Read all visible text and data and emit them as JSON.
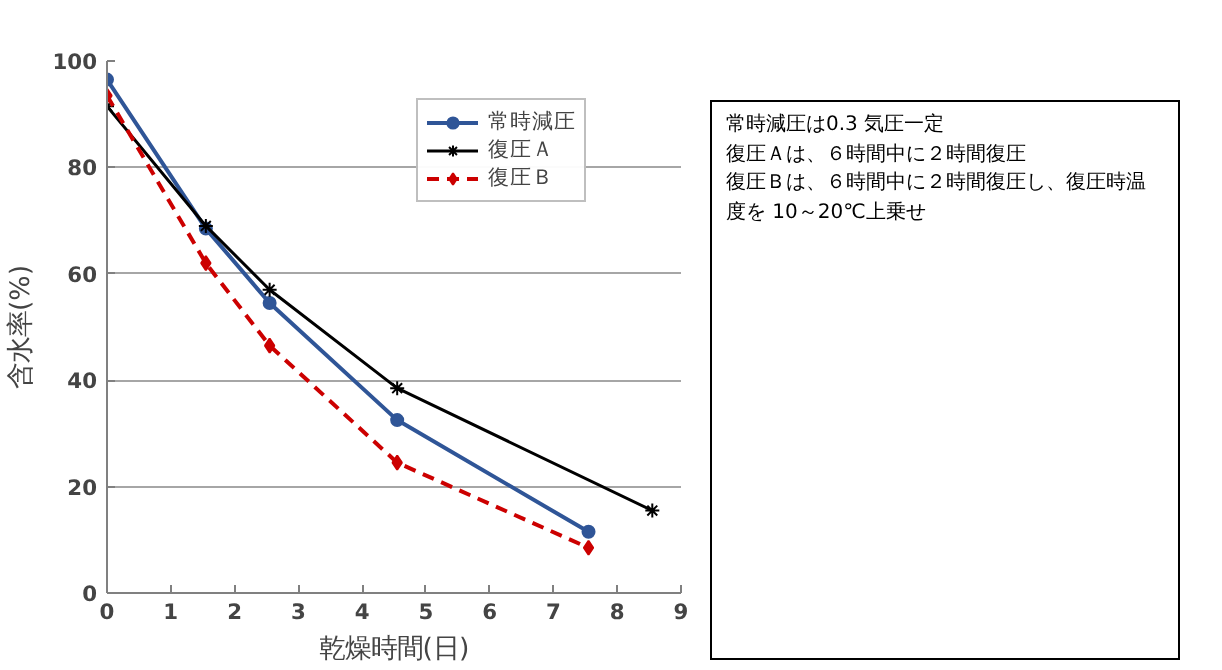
{
  "chart_data": {
    "type": "line",
    "xlabel": "乾燥時間(日)",
    "ylabel": "含水率(%)",
    "xlim": [
      0,
      9
    ],
    "xticks": [
      0,
      1,
      2,
      3,
      4,
      5,
      6,
      7,
      8,
      9
    ],
    "ylim": [
      0,
      100
    ],
    "yticks": [
      0,
      20,
      40,
      60,
      80,
      100
    ],
    "grid": "y",
    "legend": "top right",
    "series": [
      {
        "name": "常時減圧",
        "color": "#2f5597",
        "marker": "circle",
        "line_style": "solid",
        "x": [
          0,
          1.55,
          2.55,
          4.55,
          7.55
        ],
        "values": [
          96.5,
          68.5,
          54.5,
          32.5,
          11.5
        ]
      },
      {
        "name": "復圧Ａ",
        "color": "#000000",
        "marker": "cross",
        "line_style": "solid",
        "x": [
          0,
          1.55,
          2.55,
          4.55,
          8.55
        ],
        "values": [
          91.5,
          69,
          57,
          38.5,
          15.5
        ]
      },
      {
        "name": "復圧Ｂ",
        "color": "#cc0000",
        "marker": "diamond",
        "line_style": "dashed",
        "x": [
          0,
          1.55,
          2.55,
          4.55,
          7.55
        ],
        "values": [
          93.5,
          62,
          46.5,
          24.5,
          8.5
        ]
      }
    ],
    "annotations": [
      "常時減圧は0.3 気圧一定",
      "復圧Ａは、６時間中に２時間復圧",
      "復圧Ｂは、６時間中に２時間復圧し、復圧時温度を 10～20℃上乗せ"
    ]
  }
}
